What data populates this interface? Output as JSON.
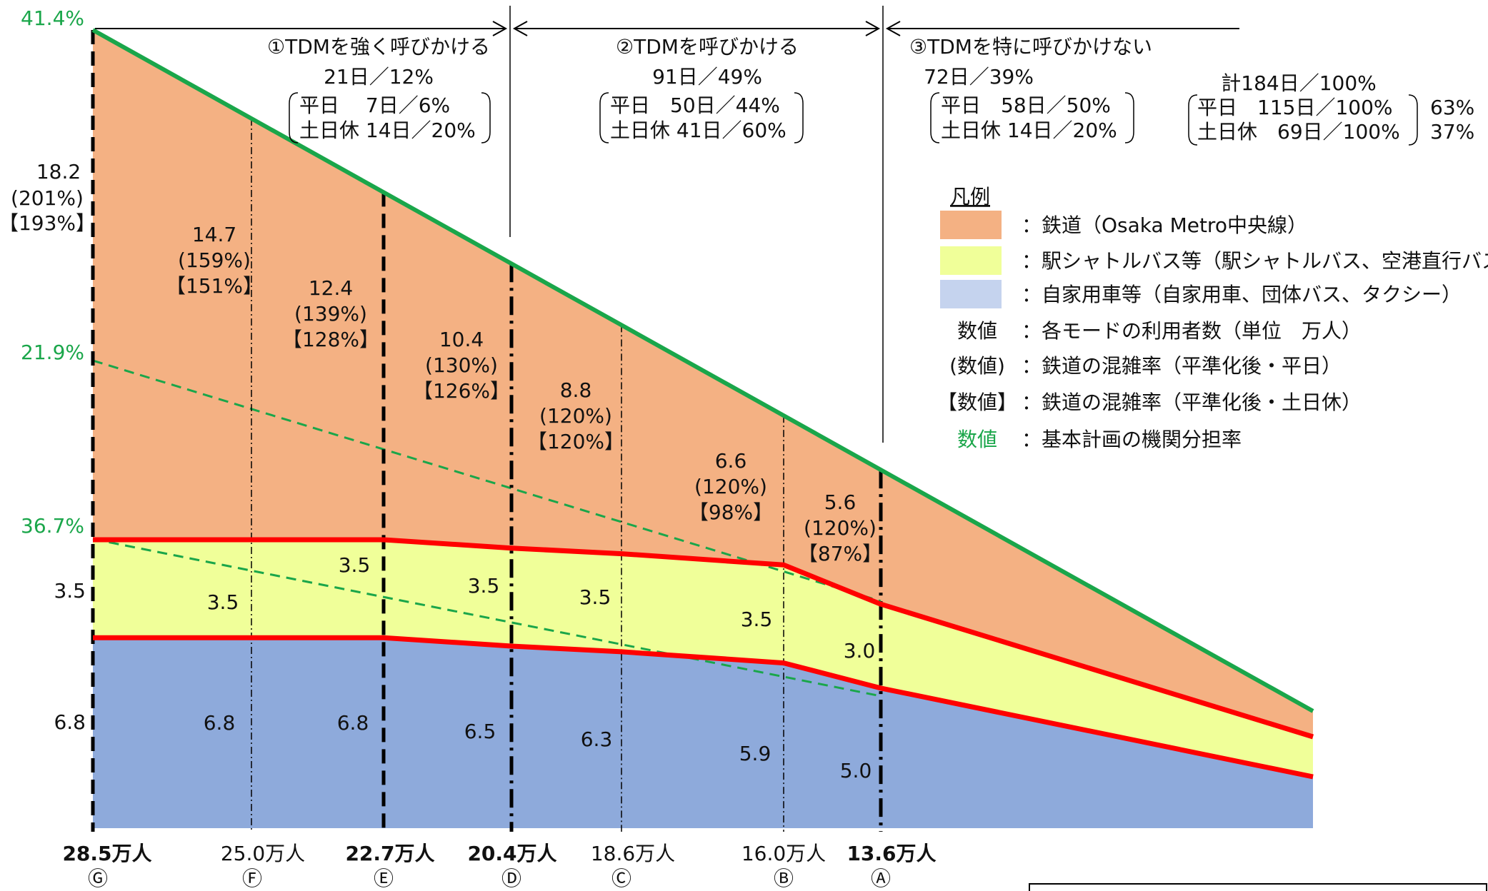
{
  "chart_data": {
    "type": "area",
    "stacked": true,
    "x_categories": [
      "28.5万人",
      "25.0万人",
      "22.7万人",
      "20.4万人",
      "18.6万人",
      "16.0万人",
      "13.6万人"
    ],
    "x_markers": [
      "Ⓖ",
      "Ⓕ",
      "Ⓔ",
      "Ⓓ",
      "Ⓒ",
      "Ⓑ",
      "Ⓐ"
    ],
    "x_bold": [
      true,
      false,
      true,
      true,
      false,
      false,
      true
    ],
    "series": [
      {
        "name": "自家用車等（自家用車、団体バス、タクシー）",
        "color": "#8eaadb",
        "values": [
          6.8,
          6.8,
          6.8,
          6.5,
          6.3,
          5.9,
          5.0
        ]
      },
      {
        "name": "駅シャトルバス等（駅シャトルバス、空港直行バス、中長",
        "color": "#f0ff99",
        "values": [
          3.5,
          3.5,
          3.5,
          3.5,
          3.5,
          3.5,
          3.0
        ]
      },
      {
        "name": "鉄道（Osaka Metro中央線）",
        "color": "#f4b183",
        "values": [
          18.2,
          14.7,
          12.4,
          10.4,
          8.8,
          6.6,
          5.6
        ],
        "congestion_weekday": [
          "(201%)",
          "(159%)",
          "(139%)",
          "(130%)",
          "(120%)",
          "(120%)",
          "(120%)"
        ],
        "congestion_weekend": [
          "【193%】",
          "【151%】",
          "【128%】",
          "【126%】",
          "【120%】",
          "【98%】",
          "【87%】"
        ]
      }
    ],
    "left_labels": {
      "rail": "18.2",
      "rail_weekday": "(201%)",
      "rail_weekend": "【193%】",
      "bus": "3.5",
      "car": "6.8"
    },
    "mode_share": [
      "41.4%",
      "21.9%",
      "36.7%"
    ],
    "periods": [
      {
        "title": "①TDMを強く呼びかける",
        "total": "21日／12%",
        "weekday": "平日　 7日／6%",
        "weekend": "土日休 14日／20%"
      },
      {
        "title": "②TDMを呼びかける",
        "total": "91日／49%",
        "weekday": "平日　50日／44%",
        "weekend": "土日休 41日／60%"
      },
      {
        "title": "③TDMを特に呼びかけない",
        "total": "72日／39%",
        "weekday": "平日　58日／50%",
        "weekend": "土日休 14日／20%"
      }
    ],
    "summary": {
      "total": "計184日／100%",
      "weekday": "平日　115日／100%",
      "weekday_pct": "63%",
      "weekend": "土日休　69日／100%",
      "weekend_pct": "37%"
    },
    "legend": {
      "title": "凡例",
      "items": [
        {
          "key": "",
          "text": "：鉄道（Osaka Metro中央線）",
          "swatch": "#f4b183"
        },
        {
          "key": "",
          "text": "：駅シャトルバス等（駅シャトルバス、空港直行バス、中長",
          "swatch": "#f0ff99"
        },
        {
          "key": "",
          "text": "：自家用車等（自家用車、団体バス、タクシー）",
          "swatch": "#c5d3ee"
        },
        {
          "key": "数値",
          "text": "：各モードの利用者数（単位　万人）"
        },
        {
          "key": "(数値)",
          "text": "：鉄道の混雑率（平準化後・平日）"
        },
        {
          "key": "【数値】",
          "text": "：鉄道の混雑率（平準化後・土日休）"
        },
        {
          "key": "数値",
          "text": "：基本計画の機関分担率",
          "green": true
        }
      ]
    },
    "colors": {
      "rail": "#f4b183",
      "bus": "#f0ff99",
      "car": "#8eaadb",
      "total_line": "#1aa64a",
      "boundary_line": "#ff0000",
      "share_text": "#1aa64a"
    }
  }
}
